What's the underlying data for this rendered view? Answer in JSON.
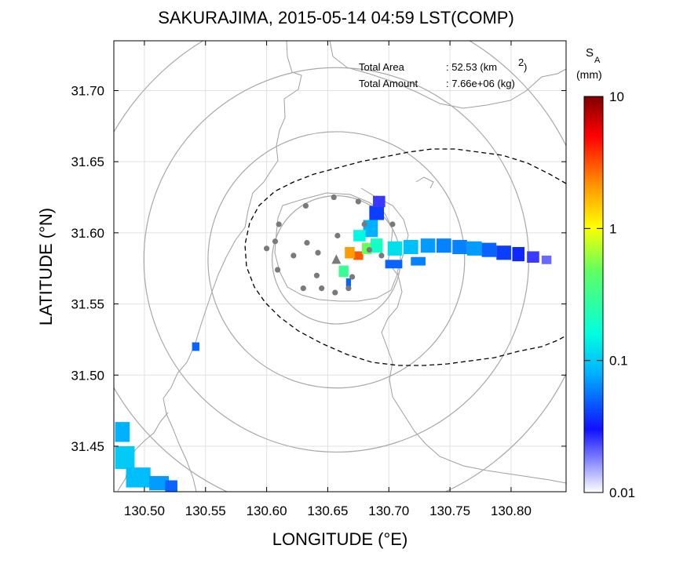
{
  "chart_data": {
    "type": "heatmap",
    "title": "SAKURAJIMA, 2015-05-14 04:59 LST(COMP)",
    "xlabel": "LONGITUDE (°E)",
    "ylabel": "LATITUDE (°N)",
    "xlim": [
      130.475,
      130.845
    ],
    "ylim": [
      31.418,
      31.735
    ],
    "xticks": [
      130.5,
      130.55,
      130.6,
      130.65,
      130.7,
      130.75,
      130.8
    ],
    "xtick_labels": [
      "130.50",
      "130.55",
      "130.60",
      "130.65",
      "130.70",
      "130.75",
      "130.80"
    ],
    "yticks": [
      31.45,
      31.5,
      31.55,
      31.6,
      31.65,
      31.7
    ],
    "ytick_labels": [
      "31.45",
      "31.50",
      "31.55",
      "31.60",
      "31.65",
      "31.70"
    ],
    "grid": true,
    "annotations": {
      "area_label": "Total Area",
      "area_value": ": 52.53 (km",
      "area_sup": "2",
      "area_close": ")",
      "amount_label": "Total Amount",
      "amount_value": ": 7.66e+06 (kg)"
    },
    "colorbar": {
      "label_main": "S",
      "label_sub": "A",
      "unit": "(mm)",
      "scale": "log",
      "range": [
        0.01,
        10
      ],
      "ticks": [
        0.01,
        0.1,
        1,
        10
      ],
      "tick_labels": [
        "0.01",
        "0.1",
        "1",
        "10"
      ],
      "colors": [
        "#ffffff",
        "#1010ff",
        "#00b0ff",
        "#00ffe0",
        "#60ff60",
        "#ffff00",
        "#ff9000",
        "#ff0000",
        "#800000"
      ]
    },
    "vent": {
      "lon": 130.657,
      "lat": 31.581
    },
    "range_rings_km": [
      5,
      10,
      15,
      20
    ],
    "ring_center": {
      "lon": 130.657,
      "lat": 31.581
    },
    "stations": [
      {
        "lon": 130.655,
        "lat": 31.625
      },
      {
        "lon": 130.675,
        "lat": 31.622
      },
      {
        "lon": 130.632,
        "lat": 31.619
      },
      {
        "lon": 130.61,
        "lat": 31.606
      },
      {
        "lon": 130.607,
        "lat": 31.594
      },
      {
        "lon": 130.633,
        "lat": 31.593
      },
      {
        "lon": 130.658,
        "lat": 31.598
      },
      {
        "lon": 130.68,
        "lat": 31.606
      },
      {
        "lon": 130.703,
        "lat": 31.606
      },
      {
        "lon": 130.6,
        "lat": 31.589
      },
      {
        "lon": 130.622,
        "lat": 31.584
      },
      {
        "lon": 130.642,
        "lat": 31.586
      },
      {
        "lon": 130.684,
        "lat": 31.588
      },
      {
        "lon": 130.694,
        "lat": 31.584
      },
      {
        "lon": 130.609,
        "lat": 31.574
      },
      {
        "lon": 130.641,
        "lat": 31.57
      },
      {
        "lon": 130.67,
        "lat": 31.569
      },
      {
        "lon": 130.63,
        "lat": 31.561
      },
      {
        "lon": 130.645,
        "lat": 31.561
      },
      {
        "lon": 130.667,
        "lat": 31.561
      },
      {
        "lon": 130.656,
        "lat": 31.558
      }
    ],
    "ash_cells": [
      {
        "lon": 130.675,
        "lat": 31.584,
        "w": 0.008,
        "h": 0.006,
        "v": 3.0
      },
      {
        "lon": 130.668,
        "lat": 31.586,
        "w": 0.008,
        "h": 0.008,
        "v": 2.0
      },
      {
        "lon": 130.682,
        "lat": 31.589,
        "w": 0.008,
        "h": 0.008,
        "v": 0.5
      },
      {
        "lon": 130.69,
        "lat": 31.591,
        "w": 0.01,
        "h": 0.01,
        "v": 0.2
      },
      {
        "lon": 130.685,
        "lat": 31.603,
        "w": 0.012,
        "h": 0.012,
        "v": 0.08
      },
      {
        "lon": 130.69,
        "lat": 31.614,
        "w": 0.012,
        "h": 0.01,
        "v": 0.04
      },
      {
        "lon": 130.692,
        "lat": 31.622,
        "w": 0.01,
        "h": 0.008,
        "v": 0.025
      },
      {
        "lon": 130.676,
        "lat": 31.598,
        "w": 0.01,
        "h": 0.008,
        "v": 0.15
      },
      {
        "lon": 130.705,
        "lat": 31.589,
        "w": 0.012,
        "h": 0.01,
        "v": 0.12
      },
      {
        "lon": 130.718,
        "lat": 31.59,
        "w": 0.012,
        "h": 0.01,
        "v": 0.09
      },
      {
        "lon": 130.732,
        "lat": 31.591,
        "w": 0.012,
        "h": 0.01,
        "v": 0.07
      },
      {
        "lon": 130.745,
        "lat": 31.591,
        "w": 0.012,
        "h": 0.01,
        "v": 0.06
      },
      {
        "lon": 130.758,
        "lat": 31.59,
        "w": 0.012,
        "h": 0.01,
        "v": 0.06
      },
      {
        "lon": 130.77,
        "lat": 31.589,
        "w": 0.012,
        "h": 0.01,
        "v": 0.07
      },
      {
        "lon": 130.782,
        "lat": 31.588,
        "w": 0.012,
        "h": 0.01,
        "v": 0.05
      },
      {
        "lon": 130.794,
        "lat": 31.586,
        "w": 0.012,
        "h": 0.01,
        "v": 0.04
      },
      {
        "lon": 130.806,
        "lat": 31.585,
        "w": 0.01,
        "h": 0.01,
        "v": 0.035
      },
      {
        "lon": 130.818,
        "lat": 31.583,
        "w": 0.01,
        "h": 0.008,
        "v": 0.025
      },
      {
        "lon": 130.829,
        "lat": 31.581,
        "w": 0.008,
        "h": 0.006,
        "v": 0.02
      },
      {
        "lon": 130.704,
        "lat": 31.578,
        "w": 0.014,
        "h": 0.006,
        "v": 0.05
      },
      {
        "lon": 130.724,
        "lat": 31.58,
        "w": 0.012,
        "h": 0.006,
        "v": 0.06
      },
      {
        "lon": 130.663,
        "lat": 31.573,
        "w": 0.008,
        "h": 0.008,
        "v": 0.3
      },
      {
        "lon": 130.667,
        "lat": 31.565,
        "w": 0.004,
        "h": 0.006,
        "v": 0.05
      },
      {
        "lon": 130.542,
        "lat": 31.52,
        "w": 0.006,
        "h": 0.006,
        "v": 0.05
      },
      {
        "lon": 130.482,
        "lat": 31.46,
        "w": 0.012,
        "h": 0.014,
        "v": 0.08
      },
      {
        "lon": 130.484,
        "lat": 31.442,
        "w": 0.016,
        "h": 0.016,
        "v": 0.1
      },
      {
        "lon": 130.495,
        "lat": 31.428,
        "w": 0.02,
        "h": 0.014,
        "v": 0.09
      },
      {
        "lon": 130.512,
        "lat": 31.424,
        "w": 0.016,
        "h": 0.01,
        "v": 0.07
      },
      {
        "lon": 130.522,
        "lat": 31.422,
        "w": 0.01,
        "h": 0.008,
        "v": 0.05
      }
    ]
  }
}
